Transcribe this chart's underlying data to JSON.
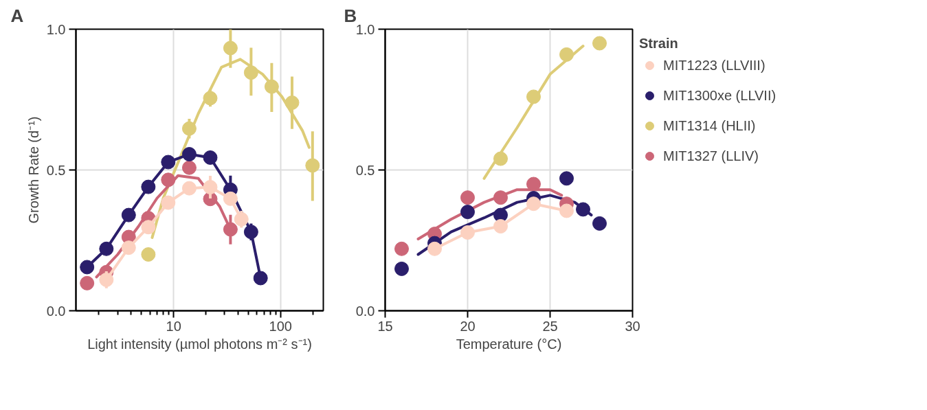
{
  "chart_data": [
    {
      "type": "scatter",
      "title": "A",
      "xlabel": "Light intensity (µmol photons m⁻² s⁻¹)",
      "ylabel": "Growth Rate (d⁻¹)",
      "log": "x",
      "grid": true,
      "marker": "circle",
      "line_style": "solid",
      "xlim": [
        1.22,
        251
      ],
      "ylim": [
        0,
        1
      ],
      "xticks": [
        {
          "value": 2,
          "label": null
        },
        {
          "value": 3,
          "label": null
        },
        {
          "value": 4,
          "label": null
        },
        {
          "value": 5,
          "label": null
        },
        {
          "value": 6,
          "label": null
        },
        {
          "value": 7,
          "label": null
        },
        {
          "value": 8,
          "label": null
        },
        {
          "value": 9,
          "label": null
        },
        10,
        {
          "value": 20,
          "label": null
        },
        {
          "value": 30,
          "label": null
        },
        {
          "value": 40,
          "label": null
        },
        {
          "value": 50,
          "label": null
        },
        {
          "value": 60,
          "label": null
        },
        {
          "value": 70,
          "label": null
        },
        {
          "value": 80,
          "label": null
        },
        {
          "value": 90,
          "label": null
        },
        100,
        {
          "value": 200,
          "label": null
        }
      ],
      "yticks": [
        {
          "value": 0,
          "label": "0.0"
        },
        {
          "value": 0.5,
          "label": "0.5"
        },
        {
          "value": 1,
          "label": "1.0"
        }
      ],
      "series": [
        {
          "type": "line",
          "color": "#fcd1c0",
          "x": [
            2.35,
            3.8,
            5.8,
            8.9,
            14,
            22,
            34,
            43
          ],
          "values": [
            0.11,
            0.224,
            0.297,
            0.384,
            0.435,
            0.439,
            0.398,
            0.325
          ],
          "errors": [
            0.03,
            null,
            null,
            null,
            null,
            0.04,
            null,
            0.03
          ]
        },
        {
          "type": "line",
          "color": "#2a1e6b",
          "x": [
            1.55,
            2.35,
            3.8,
            5.8,
            8.9,
            14,
            22,
            34,
            53,
            65
          ],
          "values": [
            0.155,
            0.22,
            0.34,
            0.44,
            0.528,
            0.556,
            0.544,
            0.43,
            0.28,
            0.116
          ],
          "errors": [
            null,
            null,
            null,
            null,
            null,
            null,
            null,
            0.05,
            0.03,
            null
          ]
        },
        {
          "type": "line",
          "marker": "none",
          "color": "#ddcc77",
          "x": [
            6.3,
            8,
            17,
            28,
            42,
            68,
            103,
            160,
            185
          ],
          "values": [
            0.26,
            0.4,
            0.7,
            0.865,
            0.893,
            0.84,
            0.76,
            0.64,
            0.58
          ]
        },
        {
          "color": "#ddcc77",
          "x": [
            5.8,
            14,
            22,
            34,
            53,
            82.6,
            128,
            199
          ],
          "values": [
            0.2,
            0.647,
            0.755,
            0.933,
            0.846,
            0.796,
            0.739,
            0.516
          ],
          "errors": [
            0.02,
            0.035,
            0.03,
            [
              0.863,
              1.0
            ],
            [
              0.764,
              0.934
            ],
            [
              0.706,
              0.88
            ],
            [
              0.646,
              0.832
            ],
            [
              0.39,
              0.637
            ]
          ]
        },
        {
          "type": "line",
          "marker": "none",
          "color": "#cc6677",
          "x": [
            1.9,
            3,
            4.7,
            7,
            11,
            17,
            27,
            32
          ],
          "values": [
            0.12,
            0.2,
            0.3,
            0.4,
            0.48,
            0.47,
            0.37,
            0.31
          ]
        },
        {
          "color": "#cc6677",
          "x": [
            1.55,
            2.35,
            3.8,
            5.8,
            8.9,
            14,
            22,
            34
          ],
          "values": [
            0.098,
            0.137,
            0.262,
            0.329,
            0.465,
            0.508,
            0.397,
            0.289
          ],
          "errors": [
            null,
            null,
            null,
            null,
            null,
            null,
            null,
            [
              0.236,
              0.341
            ]
          ]
        }
      ]
    },
    {
      "type": "scatter",
      "title": "B",
      "xlabel": "Temperature (°C)",
      "grid": true,
      "marker": "circle",
      "line_style": "solid",
      "legend": "right",
      "legend_title": "Strain",
      "xlim": [
        15,
        30
      ],
      "ylim": [
        0,
        1
      ],
      "xticks": [
        15,
        20,
        25,
        30
      ],
      "yticks": [
        {
          "value": 0,
          "label": "0.0"
        },
        {
          "value": 0.5,
          "label": "0.5"
        },
        {
          "value": 1,
          "label": "1.0"
        }
      ],
      "series": [
        {
          "type": "line",
          "name": "MIT1223 (LLVIII)",
          "color": "#fcd1c0",
          "x": [
            18,
            20,
            22,
            24,
            26
          ],
          "values": [
            0.22,
            0.278,
            0.3,
            0.38,
            0.355
          ]
        },
        {
          "type": "line",
          "marker": "none",
          "color": "#2a1e6b",
          "x": [
            17,
            19,
            21,
            23,
            25,
            26.5,
            27.5
          ],
          "values": [
            0.2,
            0.28,
            0.33,
            0.385,
            0.41,
            0.385,
            0.34
          ]
        },
        {
          "name": "MIT1300xe (LLVII)",
          "color": "#2a1e6b",
          "x": [
            16,
            18,
            20,
            22,
            24,
            26,
            27,
            28
          ],
          "values": [
            0.149,
            0.24,
            0.351,
            0.34,
            0.4,
            0.47,
            0.36,
            0.31
          ]
        },
        {
          "type": "line",
          "marker": "none",
          "color": "#ddcc77",
          "x": [
            21,
            23,
            25,
            27
          ],
          "values": [
            0.47,
            0.65,
            0.84,
            0.94
          ]
        },
        {
          "name": "MIT1314 (HLII)",
          "color": "#ddcc77",
          "x": [
            22,
            24,
            26,
            28
          ],
          "values": [
            0.54,
            0.76,
            0.91,
            0.95
          ]
        },
        {
          "type": "line",
          "marker": "none",
          "color": "#cc6677",
          "x": [
            17,
            19,
            21,
            23,
            25,
            25.7
          ],
          "values": [
            0.255,
            0.325,
            0.385,
            0.43,
            0.43,
            0.41
          ]
        },
        {
          "name": "MIT1327 (LLIV)",
          "color": "#cc6677",
          "x": [
            16,
            18,
            20,
            22,
            24,
            26
          ],
          "values": [
            0.22,
            0.273,
            0.402,
            0.402,
            0.45,
            0.38
          ]
        }
      ]
    }
  ]
}
